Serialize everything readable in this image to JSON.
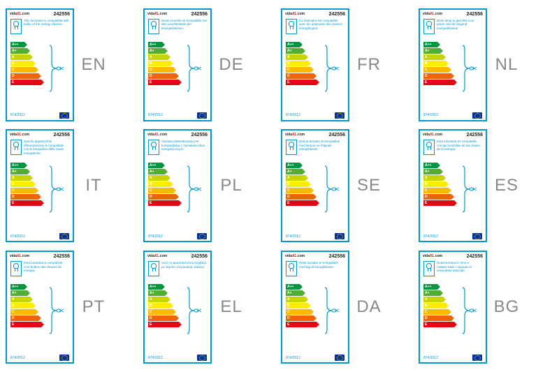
{
  "labels": [
    {
      "lang": "EN",
      "desc": "This luminaire is compatible with bulbs of the energy classes:"
    },
    {
      "lang": "DE",
      "desc": "Diese Leuchte ist kompatibel mit den Leuchtmitteln der Energieklassen:"
    },
    {
      "lang": "FR",
      "desc": "Ce luminaire est compatible avec les ampoules des classes énergétiques:"
    },
    {
      "lang": "NL",
      "desc": "Deze lamp is geschikt voor peren van de volgend energieklassen:"
    },
    {
      "lang": "IT",
      "desc": "Questo apparecchio d'illuminazione è compatibile con le lampadine delle classi energetiche:"
    },
    {
      "lang": "PL",
      "desc": "Oprawa oświetleniowa jest kompatybilna z żarówkami klas energetycznych:"
    },
    {
      "lang": "SE",
      "desc": "Denna armatur är kompatibel med lampor av följande energiklasser:"
    },
    {
      "lang": "ES",
      "desc": "Esta luminaria es compatible con las bombillas de las clases de la energía:"
    },
    {
      "lang": "PT",
      "desc": "Esta luminária é compatível com bulbos das classes de energia:"
    },
    {
      "lang": "EL",
      "desc": "Αυτό το φωτιστικό είναι συμβατό με λάμπες ενεργειακής κλάσης:"
    },
    {
      "lang": "DA",
      "desc": "Dette armatur er kompatibel med lag af energiklasser:"
    },
    {
      "lang": "BG",
      "desc": "Осветителното тяло е съвместимо с крушки от енергийни класове:"
    }
  ],
  "brand_a": "vida",
  "brand_b": "XL",
  "brand_c": ".com",
  "pid": "242556",
  "reg": "874/2012",
  "classes": [
    "A++",
    "A+",
    "A",
    "B",
    "C",
    "D",
    "E"
  ],
  "class_colors": [
    "#00963f",
    "#52ae32",
    "#c8d400",
    "#ffed00",
    "#fbba00",
    "#ec6608",
    "#e30613"
  ]
}
